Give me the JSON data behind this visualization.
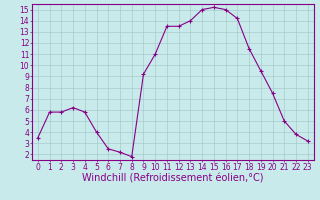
{
  "x": [
    0,
    1,
    2,
    3,
    4,
    5,
    6,
    7,
    8,
    9,
    10,
    11,
    12,
    13,
    14,
    15,
    16,
    17,
    18,
    19,
    20,
    21,
    22,
    23
  ],
  "y": [
    3.5,
    5.8,
    5.8,
    6.2,
    5.8,
    4.0,
    2.5,
    2.2,
    1.8,
    9.2,
    11.0,
    13.5,
    13.5,
    14.0,
    15.0,
    15.2,
    15.0,
    14.2,
    11.5,
    9.5,
    7.5,
    5.0,
    3.8,
    3.2
  ],
  "line_color": "#880088",
  "marker": "+",
  "marker_size": 3,
  "marker_lw": 0.8,
  "bg_color": "#c8eaea",
  "grid_color": "#a8cccc",
  "xlabel": "Windchill (Refroidissement éolien,°C)",
  "xlabel_color": "#880088",
  "tick_color": "#880088",
  "spine_color": "#880088",
  "ylim": [
    1.5,
    15.5
  ],
  "yticks": [
    2,
    3,
    4,
    5,
    6,
    7,
    8,
    9,
    10,
    11,
    12,
    13,
    14,
    15
  ],
  "xticks": [
    0,
    1,
    2,
    3,
    4,
    5,
    6,
    7,
    8,
    9,
    10,
    11,
    12,
    13,
    14,
    15,
    16,
    17,
    18,
    19,
    20,
    21,
    22,
    23
  ],
  "tick_fontsize": 5.5,
  "xlabel_fontsize": 7.0,
  "line_width": 0.8
}
